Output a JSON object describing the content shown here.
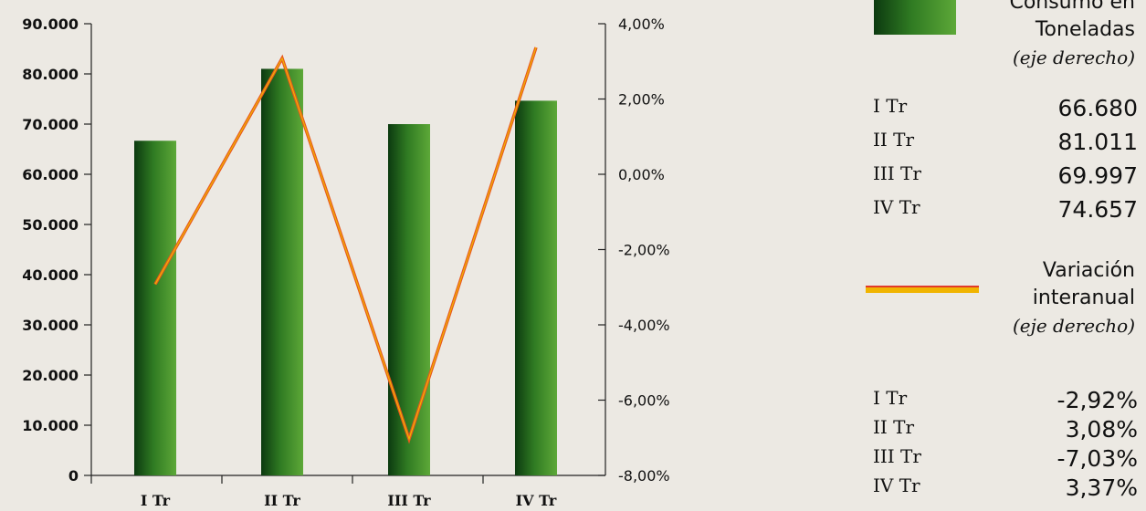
{
  "chart_data": {
    "type": "bar",
    "categories": [
      "I Tr",
      "II Tr",
      "III Tr",
      "IV Tr"
    ],
    "series": [
      {
        "name": "Consumo en Toneladas",
        "values": [
          66680,
          81011,
          69997,
          74657
        ],
        "axis": "left"
      },
      {
        "name": "Variación interanual",
        "type": "line",
        "values": [
          -2.92,
          3.08,
          -7.03,
          3.37
        ],
        "axis": "right"
      }
    ],
    "ylim": [
      0,
      90000
    ],
    "y_ticks": [
      "0",
      "10.000",
      "20.000",
      "30.000",
      "40.000",
      "50.000",
      "60.000",
      "70.000",
      "80.000",
      "90.000"
    ],
    "y2lim": [
      -8,
      4
    ],
    "y2_ticks": [
      "-8,00%",
      "-6,00%",
      "-4,00%",
      "-2,00%",
      "0,00%",
      "2,00%",
      "4,00%"
    ],
    "colors": {
      "bar_dark": "#0c3a10",
      "bar_mid": "#2f7a22",
      "bar_light": "#5da838",
      "line": "#e8571e",
      "line_inner": "#f0b400"
    },
    "grid": false,
    "legend_position": "right"
  },
  "legend": {
    "bars_title_1": "Consumo en",
    "bars_title_2": "Toneladas",
    "bars_subtitle": "(eje derecho)",
    "bars_rows": [
      {
        "label": "I Tr",
        "value": "66.680"
      },
      {
        "label": "II Tr",
        "value": "81.011"
      },
      {
        "label": "III Tr",
        "value": "69.997"
      },
      {
        "label": "IV Tr",
        "value": "74.657"
      }
    ],
    "line_title_1": "Variación",
    "line_title_2": "interanual",
    "line_subtitle": "(eje derecho)",
    "line_rows": [
      {
        "label": "I Tr",
        "value": "-2,92%"
      },
      {
        "label": "II Tr",
        "value": "3,08%"
      },
      {
        "label": "III Tr",
        "value": "-7,03%"
      },
      {
        "label": "IV Tr",
        "value": "3,37%"
      }
    ]
  }
}
